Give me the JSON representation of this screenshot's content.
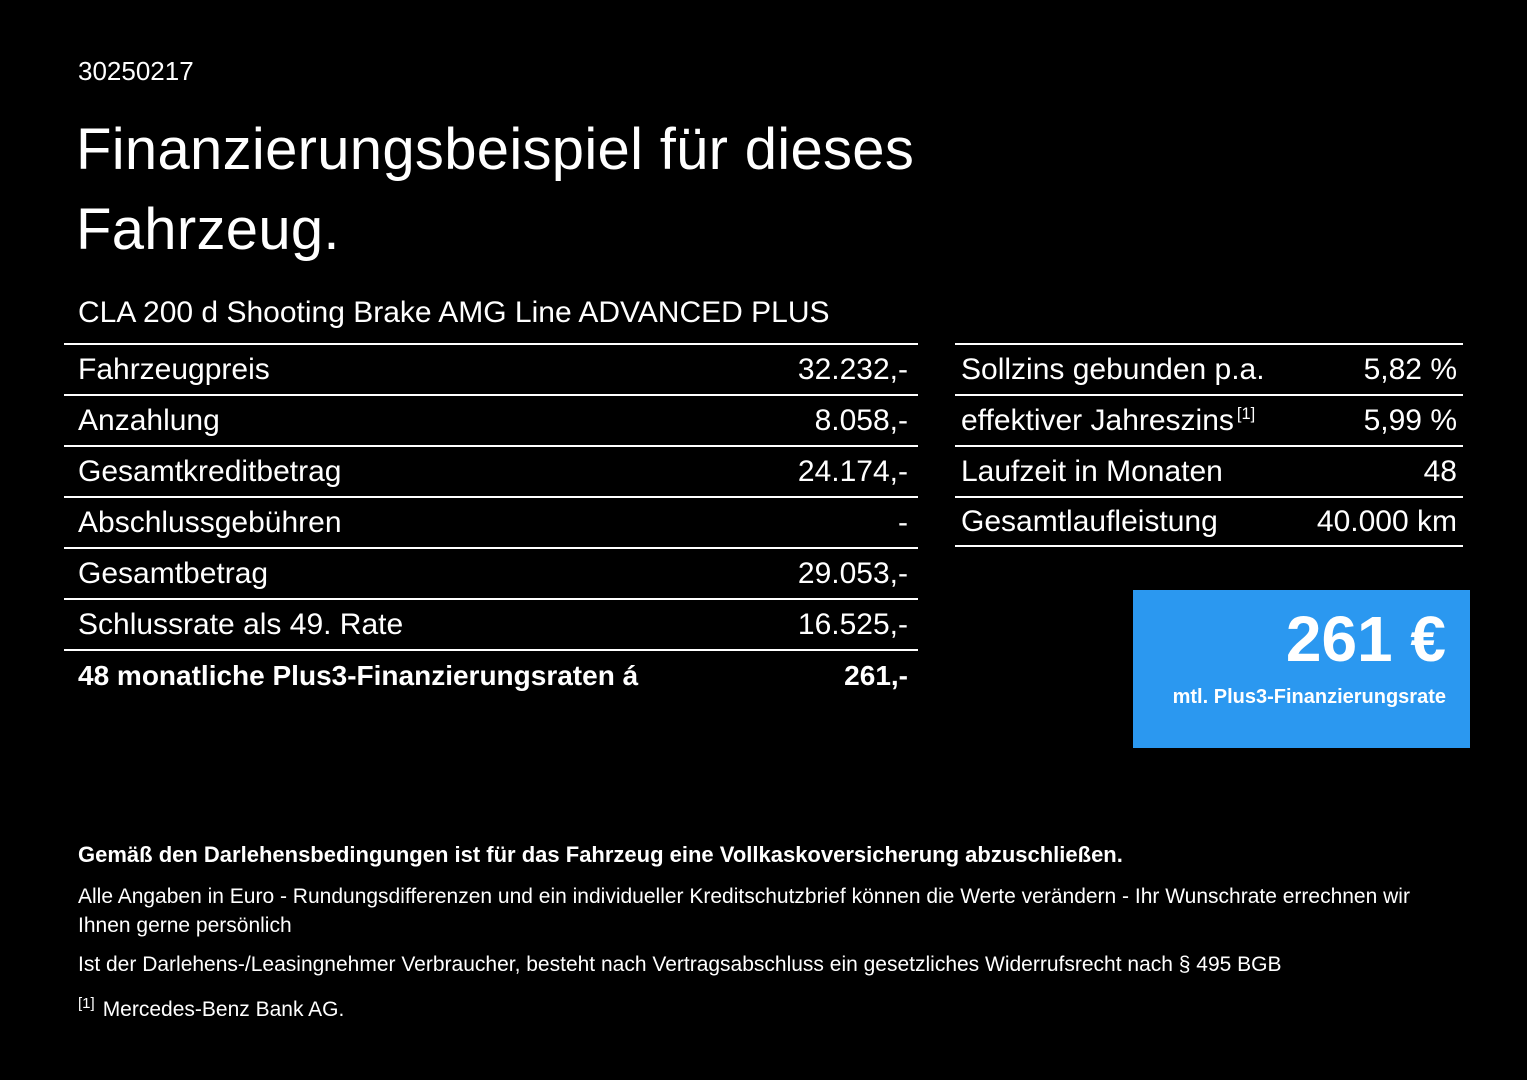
{
  "doc": {
    "ref_number": "30250217",
    "title_line1": "Finanzierungsbeispiel für dieses",
    "title_line2": "Fahrzeug.",
    "vehicle": "CLA 200 d Shooting Brake AMG Line ADVANCED PLUS"
  },
  "left_table": {
    "rows": [
      {
        "label": "Fahrzeugpreis",
        "value": "32.232,-"
      },
      {
        "label": "Anzahlung",
        "value": "8.058,-"
      },
      {
        "label": "Gesamtkreditbetrag",
        "value": "24.174,-"
      },
      {
        "label": "Abschlussgebühren",
        "value": "-"
      },
      {
        "label": "Gesamtbetrag",
        "value": "29.053,-"
      },
      {
        "label": "Schlussrate als 49. Rate",
        "value": "16.525,-"
      },
      {
        "label": "48 monatliche Plus3-Finanzierungsraten á",
        "value": "261,-"
      }
    ]
  },
  "right_table": {
    "rows": [
      {
        "label": "Sollzins gebunden p.a.",
        "value": "5,82 %"
      },
      {
        "label": "effektiver Jahreszins",
        "sup": "[1]",
        "value": "5,99 %"
      },
      {
        "label": "Laufzeit in Monaten",
        "value": "48"
      },
      {
        "label": "Gesamtlaufleistung",
        "value": "40.000 km"
      }
    ]
  },
  "rate_box": {
    "amount": "261 €",
    "caption": "mtl. Plus3-Finanzierungsrate",
    "background": "#2b98f0"
  },
  "footnotes": {
    "bold_note": "Gemäß den Darlehensbedingungen ist für das Fahrzeug eine Vollkaskoversicherung abzuschließen.",
    "note1": "Alle Angaben in Euro - Rundungsdifferenzen und ein individueller Kreditschutzbrief können die Werte verändern - Ihr Wunschrate errechnen wir Ihnen gerne persönlich",
    "note2": "Ist der Darlehens-/Leasingnehmer Verbraucher, besteht nach Vertragsabschluss ein gesetzliches Widerrufsrecht nach § 495 BGB",
    "ref_mark": "[1]",
    "ref_text": "Mercedes-Benz Bank AG."
  }
}
